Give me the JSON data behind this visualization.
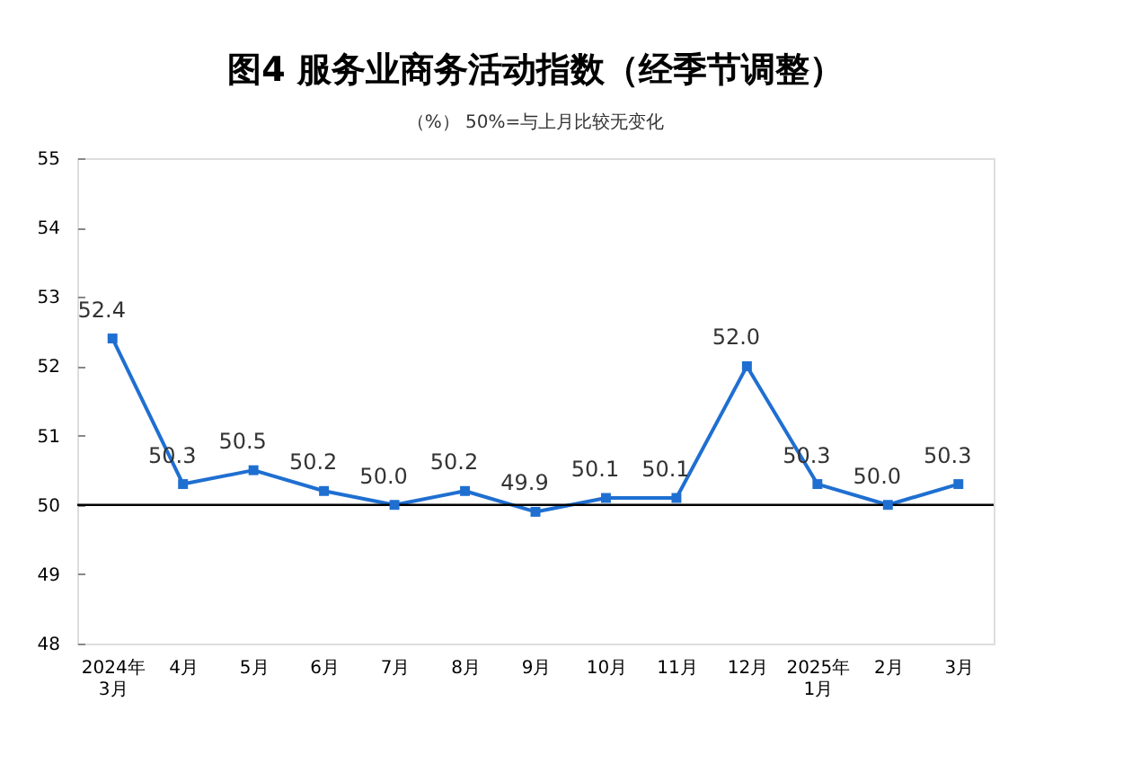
{
  "chart_data": {
    "type": "line",
    "title": "图4  服务业商务活动指数（经季节调整）",
    "subtitle": "（%）  50%=与上月比较无变化",
    "categories": [
      "2024年\n3月",
      "4月",
      "5月",
      "6月",
      "7月",
      "8月",
      "9月",
      "10月",
      "11月",
      "12月",
      "2025年\n1月",
      "2月",
      "3月"
    ],
    "series": [
      {
        "color": "#1f6fd1",
        "values": [
          52.4,
          50.3,
          50.5,
          50.2,
          50.0,
          50.2,
          49.9,
          50.1,
          50.1,
          52.0,
          50.3,
          50.0,
          50.3
        ]
      }
    ],
    "ylim": [
      48,
      55
    ],
    "yticks": [
      48,
      49,
      50,
      51,
      52,
      53,
      54,
      55
    ],
    "ref_lines": [
      {
        "axis": "y",
        "value": 50,
        "color": "#000000"
      }
    ],
    "value_labels": [
      "52.4",
      "50.3",
      "50.5",
      "50.2",
      "50.0",
      "50.2",
      "49.9",
      "50.1",
      "50.1",
      "52.0",
      "50.3",
      "50.0",
      "50.3"
    ],
    "marker": "square",
    "line_style": "solid",
    "grid": false
  }
}
